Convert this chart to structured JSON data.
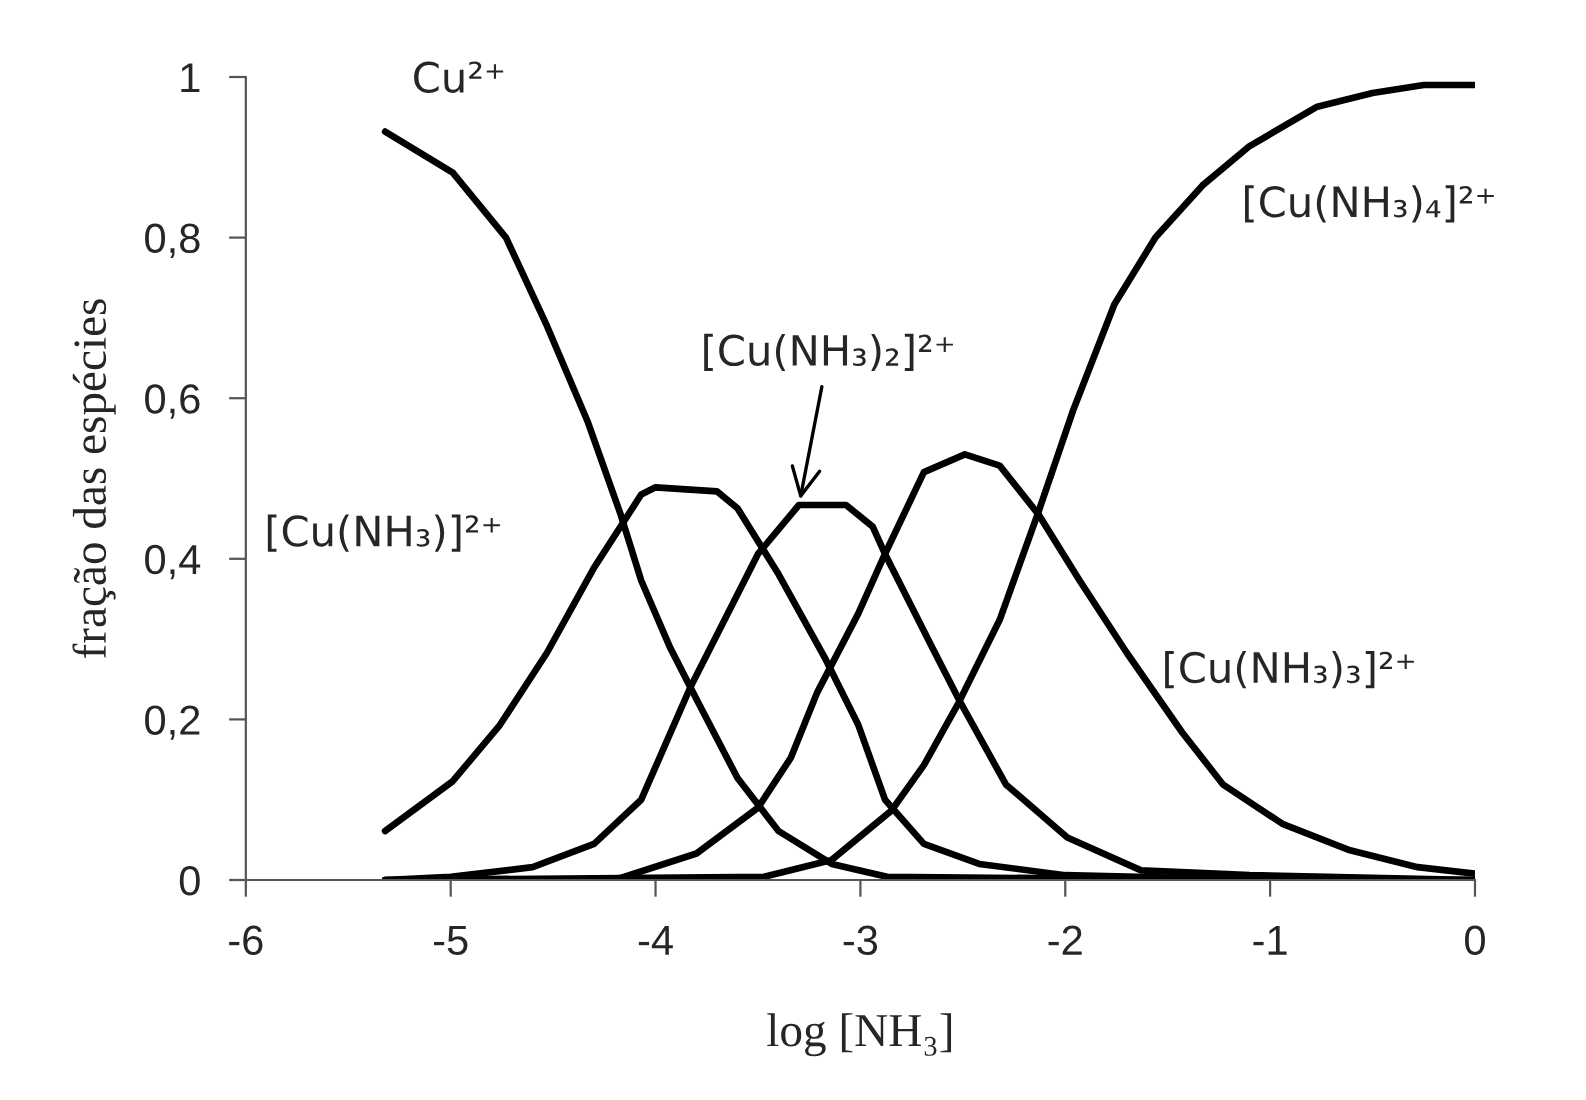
{
  "chart_data": {
    "type": "line",
    "xlabel": "log [NH₃]",
    "ylabel": "fração das espécies",
    "xlim": [
      -6,
      0
    ],
    "ylim": [
      0,
      1
    ],
    "xticks": [
      -6,
      -5,
      -4,
      -3,
      -2,
      -1,
      0
    ],
    "yticks": [
      0,
      {
        "value": 0.2,
        "label": "0,2"
      },
      {
        "value": 0.4,
        "label": "0,4"
      },
      {
        "value": 0.6,
        "label": "0,6"
      },
      {
        "value": 0.8,
        "label": "0,8"
      },
      1
    ],
    "grid": false,
    "legend": false,
    "marker": "none",
    "line_style": "solid",
    "series": [
      {
        "name": "Cu²⁺",
        "color": "#000000",
        "x": [
          -5.32,
          -4.99,
          -4.73,
          -4.53,
          -4.33,
          -4.17,
          -4.07,
          -3.93,
          -3.8,
          -3.6,
          -3.4,
          -3.14,
          -2.87,
          -2.0,
          -1.0,
          0
        ],
        "values": [
          0.932,
          0.881,
          0.8,
          0.69,
          0.57,
          0.455,
          0.373,
          0.29,
          0.225,
          0.127,
          0.061,
          0.02,
          0.004,
          0.002,
          0,
          0
        ]
      },
      {
        "name": "[Cu(NH₃)]²⁺",
        "color": "#000000",
        "x": [
          -5.32,
          -4.99,
          -4.76,
          -4.53,
          -4.3,
          -4.07,
          -4.0,
          -3.7,
          -3.6,
          -3.4,
          -3.17,
          -3.01,
          -2.88,
          -2.69,
          -2.42,
          -2.0,
          -1.0,
          0
        ],
        "values": [
          0.061,
          0.123,
          0.193,
          0.283,
          0.389,
          0.48,
          0.489,
          0.484,
          0.463,
          0.381,
          0.275,
          0.193,
          0.1,
          0.045,
          0.02,
          0.006,
          0,
          0
        ]
      },
      {
        "name": "[Cu(NH₃)₂]²⁺",
        "color": "#000000",
        "x": [
          -5.32,
          -5.0,
          -4.6,
          -4.3,
          -4.07,
          -3.83,
          -3.5,
          -3.3,
          -3.07,
          -2.94,
          -2.88,
          -2.65,
          -2.52,
          -2.29,
          -1.99,
          -1.63,
          -1.1,
          0
        ],
        "values": [
          0,
          0.004,
          0.016,
          0.045,
          0.1,
          0.24,
          0.406,
          0.467,
          0.467,
          0.44,
          0.406,
          0.29,
          0.225,
          0.119,
          0.053,
          0.012,
          0.006,
          0
        ]
      },
      {
        "name": "[Cu(NH₃)₃]²⁺",
        "color": "#000000",
        "x": [
          -5.32,
          -4.2,
          -3.8,
          -3.5,
          -3.34,
          -3.21,
          -3.01,
          -2.88,
          -2.69,
          -2.49,
          -2.32,
          -2.13,
          -1.93,
          -1.7,
          -1.43,
          -1.23,
          -0.94,
          -0.61,
          -0.28,
          0
        ],
        "values": [
          0,
          0,
          0.033,
          0.09,
          0.152,
          0.234,
          0.332,
          0.406,
          0.508,
          0.53,
          0.516,
          0.455,
          0.373,
          0.283,
          0.184,
          0.119,
          0.07,
          0.037,
          0.016,
          0.008
        ]
      },
      {
        "name": "[Cu(NH₃)₄]²⁺",
        "color": "#000000",
        "x": [
          -5.32,
          -3.47,
          -3.14,
          -2.85,
          -2.69,
          -2.52,
          -2.32,
          -2.13,
          -1.96,
          -1.76,
          -1.56,
          -1.33,
          -1.1,
          -0.77,
          -0.5,
          -0.25,
          0
        ],
        "values": [
          0,
          0.004,
          0.025,
          0.086,
          0.143,
          0.221,
          0.324,
          0.459,
          0.586,
          0.717,
          0.8,
          0.865,
          0.914,
          0.963,
          0.98,
          0.99,
          0.99
        ]
      }
    ]
  }
}
